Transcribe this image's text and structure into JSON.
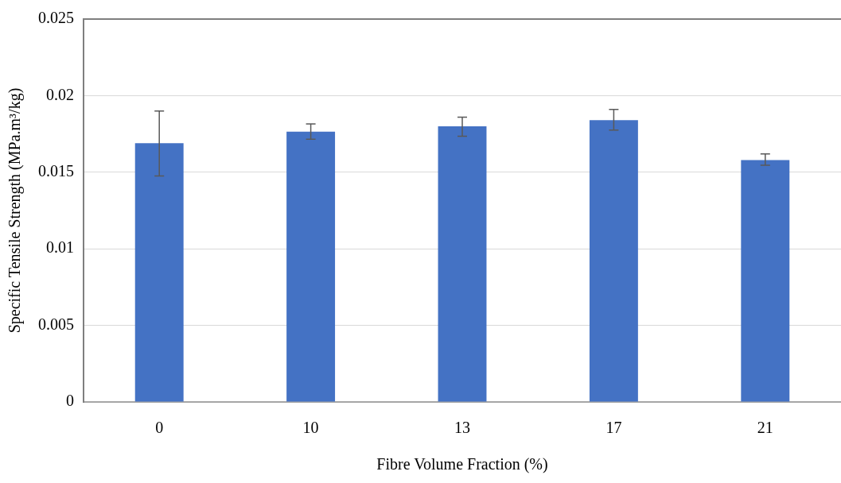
{
  "chart_data": {
    "type": "bar",
    "xlabel": "Fibre Volume Fraction (%)",
    "ylabel": "Specific Tensile Strength (MPa.m³/kg)",
    "categories": [
      "0",
      "10",
      "13",
      "17",
      "21"
    ],
    "values": [
      0.0169,
      0.01765,
      0.018,
      0.0184,
      0.0158
    ],
    "errors": [
      [
        0.01475,
        0.019
      ],
      [
        0.01715,
        0.01815
      ],
      [
        0.01735,
        0.0186
      ],
      [
        0.01775,
        0.0191
      ],
      [
        0.01545,
        0.0162
      ]
    ],
    "color": "#4472c4",
    "ylim": [
      0,
      0.025
    ],
    "yticks": [
      0,
      0.005,
      0.01,
      0.015,
      0.02,
      0.025
    ],
    "grid": "y"
  }
}
